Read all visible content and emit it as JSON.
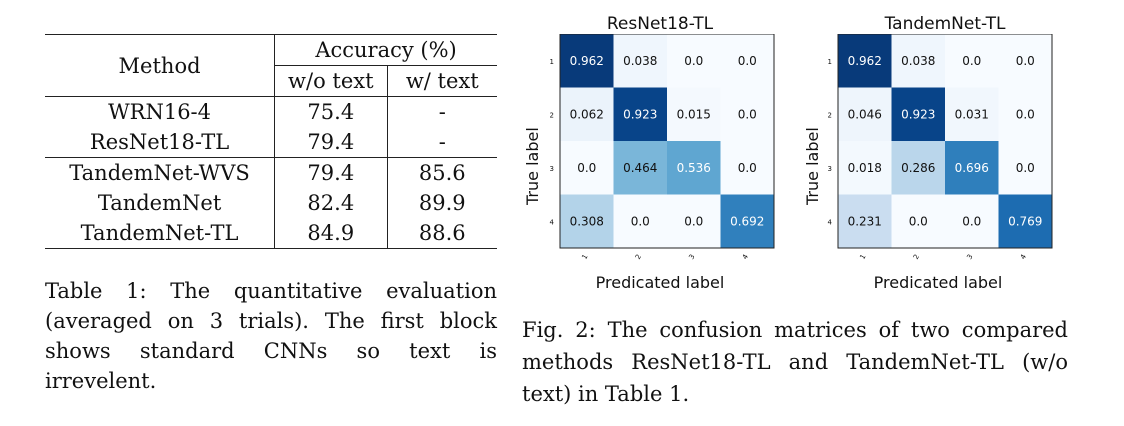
{
  "table": {
    "header_method": "Method",
    "header_accuracy": "Accuracy (%)",
    "header_wo": "w/o text",
    "header_w": "w/ text",
    "rows": [
      {
        "method": "WRN16-4",
        "wo": "75.4",
        "w": "-"
      },
      {
        "method": "ResNet18-TL",
        "wo": "79.4",
        "w": "-"
      },
      {
        "method": "TandemNet-WVS",
        "wo": "79.4",
        "w": "85.6"
      },
      {
        "method": "TandemNet",
        "wo": "82.4",
        "w": "89.9"
      },
      {
        "method": "TandemNet-TL",
        "wo": "84.9",
        "w": "88.6"
      }
    ],
    "caption": "Table 1: The quantitative evaluation (averaged on 3 trials). The first block shows standard CNNs so text is irrevelent."
  },
  "figure": {
    "caption": "Fig. 2: The confusion matrices of two compared methods ResNet18-TL and TandemNet-TL (w/o text) in Table 1."
  },
  "chart_data": [
    {
      "type": "heatmap",
      "title": "ResNet18-TL",
      "xlabel": "Predicated label",
      "ylabel": "True label",
      "x_ticks": [
        "1",
        "2",
        "3",
        "4"
      ],
      "y_ticks": [
        "1",
        "2",
        "3",
        "4"
      ],
      "colormap": "Blues",
      "values": [
        [
          "0.962",
          "0.038",
          "0.0",
          "0.0"
        ],
        [
          "0.062",
          "0.923",
          "0.015",
          "0.0"
        ],
        [
          "0.0",
          "0.464",
          "0.536",
          "0.0"
        ],
        [
          "0.308",
          "0.0",
          "0.0",
          "0.692"
        ]
      ]
    },
    {
      "type": "heatmap",
      "title": "TandemNet-TL",
      "xlabel": "Predicated label",
      "ylabel": "True label",
      "x_ticks": [
        "1",
        "2",
        "3",
        "4"
      ],
      "y_ticks": [
        "1",
        "2",
        "3",
        "4"
      ],
      "colormap": "Blues",
      "values": [
        [
          "0.962",
          "0.038",
          "0.0",
          "0.0"
        ],
        [
          "0.046",
          "0.923",
          "0.031",
          "0.0"
        ],
        [
          "0.018",
          "0.286",
          "0.696",
          "0.0"
        ],
        [
          "0.231",
          "0.0",
          "0.0",
          "0.769"
        ]
      ]
    }
  ]
}
